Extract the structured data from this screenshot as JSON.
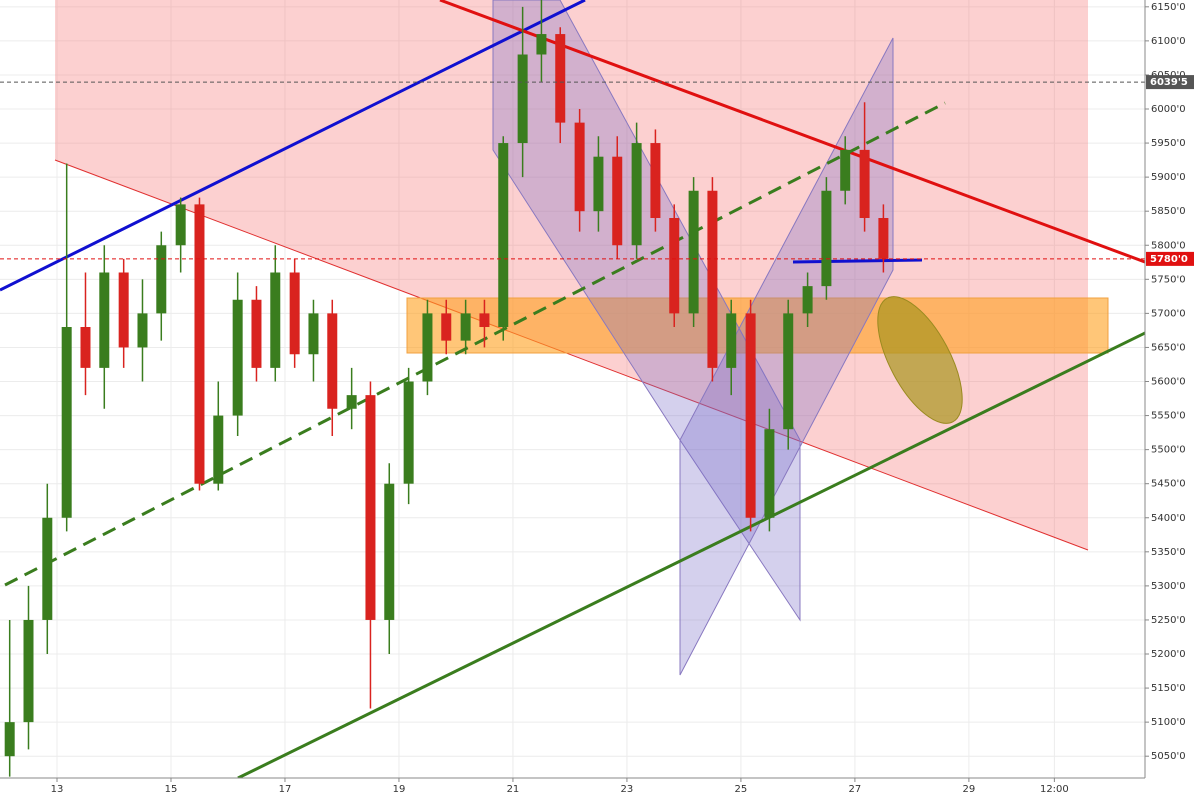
{
  "chart_data": {
    "type": "candlestick",
    "x": [
      12.17,
      12.5,
      12.83,
      13.17,
      13.5,
      13.83,
      14.17,
      14.5,
      14.83,
      15.17,
      15.5,
      15.83,
      16.17,
      16.5,
      16.83,
      17.17,
      17.5,
      17.83,
      18.17,
      18.5,
      18.83,
      19.17,
      19.5,
      19.83,
      20.17,
      20.5,
      20.83,
      21.17,
      21.5,
      21.83,
      22.17,
      22.5,
      22.83,
      23.17,
      23.5,
      23.83,
      24.17,
      24.5,
      24.83,
      25.17,
      25.5,
      25.83,
      26.17,
      26.5,
      26.83,
      27.17,
      27.5
    ],
    "open": [
      5050,
      5100,
      5250,
      5400,
      5680,
      5620,
      5760,
      5650,
      5700,
      5800,
      5860,
      5450,
      5550,
      5720,
      5620,
      5760,
      5640,
      5700,
      5560,
      5580,
      5250,
      5450,
      5600,
      5700,
      5660,
      5700,
      5680,
      5950,
      6080,
      6110,
      5980,
      5850,
      5930,
      5800,
      5950,
      5840,
      5700,
      5880,
      5620,
      5700,
      5400,
      5530,
      5700,
      5740,
      5880,
      5940,
      5840
    ],
    "high": [
      5250,
      5300,
      5450,
      5920,
      5760,
      5800,
      5780,
      5750,
      5820,
      5870,
      5870,
      5600,
      5760,
      5740,
      5800,
      5780,
      5720,
      5720,
      5620,
      5600,
      5480,
      5620,
      5720,
      5720,
      5720,
      5720,
      5960,
      6150,
      6160,
      6120,
      6000,
      5960,
      5960,
      5980,
      5970,
      5860,
      5900,
      5900,
      5720,
      5720,
      5560,
      5720,
      5760,
      5900,
      5960,
      6010,
      5860
    ],
    "low": [
      5020,
      5060,
      5200,
      5380,
      5580,
      5560,
      5620,
      5600,
      5660,
      5760,
      5440,
      5440,
      5520,
      5600,
      5600,
      5620,
      5600,
      5520,
      5530,
      5120,
      5200,
      5420,
      5580,
      5640,
      5640,
      5650,
      5660,
      5900,
      6040,
      5950,
      5820,
      5820,
      5780,
      5780,
      5820,
      5680,
      5680,
      5600,
      5580,
      5380,
      5380,
      5500,
      5680,
      5720,
      5860,
      5820,
      5760
    ],
    "close": [
      5100,
      5250,
      5400,
      5680,
      5620,
      5760,
      5650,
      5700,
      5800,
      5860,
      5450,
      5550,
      5720,
      5620,
      5760,
      5640,
      5700,
      5560,
      5580,
      5250,
      5450,
      5600,
      5700,
      5660,
      5700,
      5680,
      5950,
      6080,
      6110,
      5980,
      5850,
      5930,
      5800,
      5950,
      5840,
      5700,
      5880,
      5620,
      5700,
      5400,
      5530,
      5700,
      5740,
      5880,
      5940,
      5840,
      5780
    ],
    "up_color": "#3a7d1e",
    "down_color": "#d9231f",
    "xlim": [
      12,
      32.09
    ],
    "xticks": [
      13,
      15,
      17,
      19,
      21,
      23,
      25,
      27,
      29,
      {
        "value": 30.5,
        "label": "12:00"
      }
    ],
    "ylim": [
      5018,
      6160
    ],
    "yticks": [
      {
        "value": 5050,
        "label": "5050'0"
      },
      {
        "value": 5100,
        "label": "5100'0"
      },
      {
        "value": 5150,
        "label": "5150'0"
      },
      {
        "value": 5200,
        "label": "5200'0"
      },
      {
        "value": 5250,
        "label": "5250'0"
      },
      {
        "value": 5300,
        "label": "5300'0"
      },
      {
        "value": 5350,
        "label": "5350'0"
      },
      {
        "value": 5400,
        "label": "5400'0"
      },
      {
        "value": 5450,
        "label": "5450'0"
      },
      {
        "value": 5500,
        "label": "5500'0"
      },
      {
        "value": 5550,
        "label": "5550'0"
      },
      {
        "value": 5600,
        "label": "5600'0"
      },
      {
        "value": 5650,
        "label": "5650'0"
      },
      {
        "value": 5700,
        "label": "5700'0"
      },
      {
        "value": 5750,
        "label": "5750'0"
      },
      {
        "value": 5800,
        "label": "5800'0"
      },
      {
        "value": 5850,
        "label": "5850'0"
      },
      {
        "value": 5900,
        "label": "5900'0"
      },
      {
        "value": 5950,
        "label": "5950'0"
      },
      {
        "value": 6000,
        "label": "6000'0"
      },
      {
        "value": 6050,
        "label": "6050'0"
      },
      {
        "value": 6100,
        "label": "6100'0"
      },
      {
        "value": 6150,
        "label": "6150'0"
      }
    ],
    "grid": true,
    "price_lines": [
      {
        "value": 6039.5,
        "label": "6039'5",
        "color": "#555555"
      },
      {
        "value": 5780,
        "label": "5780'0",
        "color": "#e01010"
      }
    ]
  }
}
